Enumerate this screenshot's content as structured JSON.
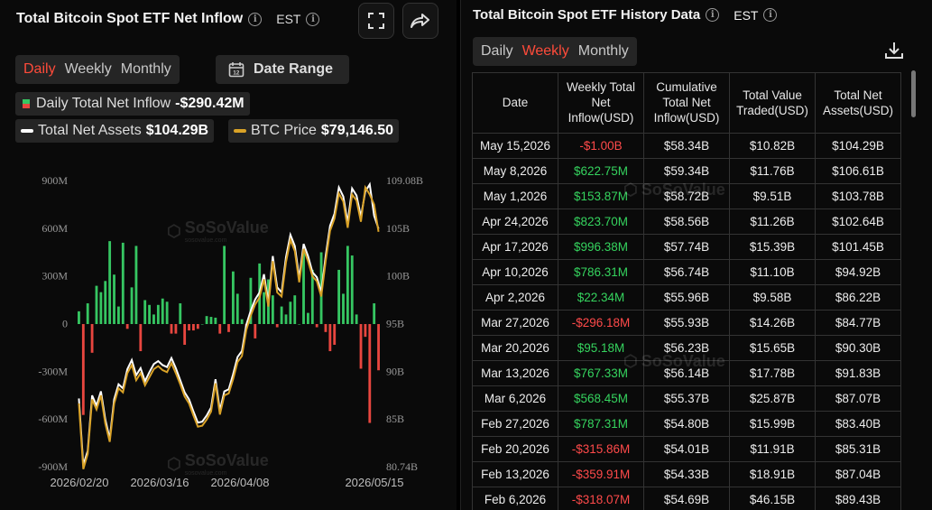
{
  "left": {
    "title": "Total Bitcoin Spot ETF Net Inflow",
    "timezone": "EST",
    "tabs": [
      {
        "label": "Daily",
        "active": true
      },
      {
        "label": "Weekly",
        "active": false
      },
      {
        "label": "Monthly",
        "active": false
      }
    ],
    "date_range_label": "Date Range",
    "legend": {
      "inflow_label": "Daily Total Net Inflow",
      "inflow_value": "-$290.42M",
      "assets_label": "Total Net Assets",
      "assets_value": "$104.29B",
      "btc_label": "BTC Price",
      "btc_value": "$79,146.50"
    },
    "watermark_brand": "SoSoValue",
    "watermark_url": "sosovalue.com"
  },
  "chart_data": {
    "type": "bar",
    "title": "Total Bitcoin Spot ETF Net Inflow",
    "y_left_ticks": [
      "900M",
      "600M",
      "300M",
      "0",
      "-300M",
      "-600M",
      "-900M"
    ],
    "y_right_ticks": [
      "109.08B",
      "105B",
      "100B",
      "95B",
      "90B",
      "85B",
      "80.74B"
    ],
    "x_ticks": [
      "2026/02/20",
      "2026/03/16",
      "2026/04/08",
      "2026/05/15"
    ],
    "ylim_left": [
      -900,
      900
    ],
    "ylim_right": [
      80.74,
      109.08
    ],
    "colors": {
      "positive": "#36c662",
      "negative": "#e8463f",
      "assets": "#ffffff",
      "btc": "#d9a227"
    },
    "inflow_values": [
      80,
      -570,
      130,
      -180,
      240,
      200,
      270,
      520,
      310,
      110,
      510,
      -30,
      230,
      490,
      -170,
      150,
      120,
      60,
      120,
      160,
      140,
      -60,
      -60,
      130,
      -130,
      -40,
      -40,
      -30,
      0,
      50,
      45,
      40,
      -60,
      490,
      -50,
      330,
      190,
      30,
      -30,
      290,
      -90,
      380,
      200,
      280,
      180,
      -20,
      110,
      60,
      140,
      180,
      0,
      460,
      70,
      340,
      -20,
      450,
      -50,
      -170,
      -130,
      340,
      190,
      490,
      430,
      60,
      -280,
      -80,
      -620,
      130,
      -290
    ],
    "assets_values": [
      87.5,
      80.9,
      82.3,
      87.8,
      86.8,
      88.2,
      85.4,
      83.5,
      87.4,
      88.9,
      88.5,
      90.4,
      91.3,
      89.8,
      90.5,
      89.2,
      90.1,
      90.9,
      91.2,
      90.8,
      90.6,
      91.5,
      90.5,
      89.3,
      88.1,
      87.4,
      86.2,
      85.1,
      85.2,
      85.8,
      86.6,
      89.4,
      86.3,
      88.2,
      88.4,
      89.9,
      91.6,
      92.2,
      94.8,
      96.2,
      97.3,
      98.0,
      99.8,
      97.0,
      101.6,
      98.5,
      98.0,
      101.5,
      103.7,
      102.6,
      99.4,
      102.8,
      101.6,
      100.0,
      99.5,
      98.0,
      101.6,
      104.6,
      105.8,
      108.4,
      107.5,
      104.9,
      108.3,
      107.6,
      105.5,
      108.0,
      108.7,
      105.6,
      104.3
    ],
    "btc_values": [
      87.0,
      80.5,
      82.0,
      87.4,
      86.4,
      87.8,
      85.0,
      83.2,
      87.0,
      88.5,
      88.1,
      90.0,
      90.8,
      89.3,
      90.0,
      88.8,
      89.6,
      90.4,
      90.7,
      90.3,
      90.1,
      91.0,
      90.0,
      88.9,
      87.7,
      87.0,
      85.8,
      84.7,
      84.8,
      85.4,
      86.2,
      89.0,
      85.9,
      87.8,
      88.0,
      89.4,
      91.1,
      91.7,
      94.3,
      95.7,
      96.8,
      97.5,
      99.3,
      96.6,
      101.1,
      98.0,
      97.6,
      101.0,
      103.2,
      102.1,
      99.0,
      102.3,
      101.1,
      99.6,
      99.1,
      97.6,
      101.1,
      104.1,
      105.3,
      107.8,
      107.0,
      104.4,
      107.7,
      107.1,
      105.0,
      108.4,
      107.7,
      106.7,
      104.0
    ]
  },
  "right": {
    "title": "Total Bitcoin Spot ETF History Data",
    "timezone": "EST",
    "tabs": [
      {
        "label": "Daily",
        "active": false
      },
      {
        "label": "Weekly",
        "active": true
      },
      {
        "label": "Monthly",
        "active": false
      }
    ],
    "columns": [
      "Date",
      "Weekly Total Net Inflow(USD)",
      "Cumulative Total Net Inflow(USD)",
      "Total Value Traded(USD)",
      "Total Net Assets(USD)"
    ],
    "rows": [
      [
        "May 15,2026",
        "-$1.00B",
        "$58.34B",
        "$10.82B",
        "$104.29B"
      ],
      [
        "May 8,2026",
        "$622.75M",
        "$59.34B",
        "$11.76B",
        "$106.61B"
      ],
      [
        "May 1,2026",
        "$153.87M",
        "$58.72B",
        "$9.51B",
        "$103.78B"
      ],
      [
        "Apr 24,2026",
        "$823.70M",
        "$58.56B",
        "$11.26B",
        "$102.64B"
      ],
      [
        "Apr 17,2026",
        "$996.38M",
        "$57.74B",
        "$15.39B",
        "$101.45B"
      ],
      [
        "Apr 10,2026",
        "$786.31M",
        "$56.74B",
        "$11.10B",
        "$94.92B"
      ],
      [
        "Apr 2,2026",
        "$22.34M",
        "$55.96B",
        "$9.58B",
        "$86.22B"
      ],
      [
        "Mar 27,2026",
        "-$296.18M",
        "$55.93B",
        "$14.26B",
        "$84.77B"
      ],
      [
        "Mar 20,2026",
        "$95.18M",
        "$56.23B",
        "$15.65B",
        "$90.30B"
      ],
      [
        "Mar 13,2026",
        "$767.33M",
        "$56.14B",
        "$17.78B",
        "$91.83B"
      ],
      [
        "Mar 6,2026",
        "$568.45M",
        "$55.37B",
        "$25.87B",
        "$87.07B"
      ],
      [
        "Feb 27,2026",
        "$787.31M",
        "$54.80B",
        "$15.99B",
        "$83.40B"
      ],
      [
        "Feb 20,2026",
        "-$315.86M",
        "$54.01B",
        "$11.91B",
        "$85.31B"
      ],
      [
        "Feb 13,2026",
        "-$359.91M",
        "$54.33B",
        "$18.91B",
        "$87.04B"
      ],
      [
        "Feb 6,2026",
        "-$318.07M",
        "$54.69B",
        "$46.15B",
        "$89.43B"
      ]
    ],
    "watermark_brand": "SoSoValue"
  }
}
